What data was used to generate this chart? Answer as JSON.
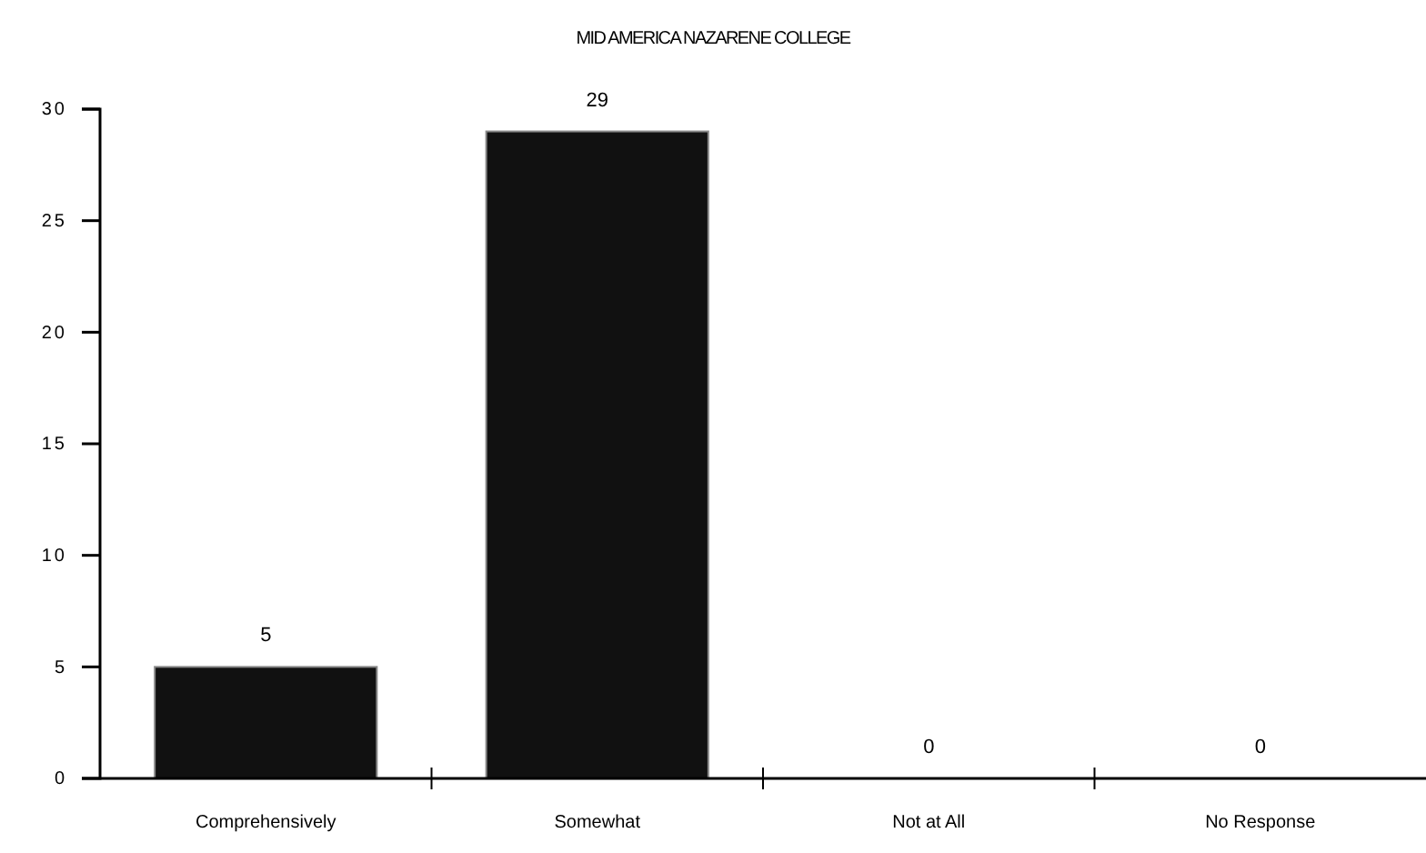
{
  "chart_data": {
    "type": "bar",
    "title": "MID AMERICA NAZARENE COLLEGE",
    "categories": [
      "Comprehensively",
      "Somewhat",
      "Not at All",
      "No Response"
    ],
    "values": [
      5,
      29,
      0,
      0
    ],
    "color": "#111111",
    "ylim": [
      0,
      30
    ],
    "yticks": [
      0,
      5,
      10,
      15,
      20,
      25,
      30
    ],
    "grid": false,
    "data_labels": true
  }
}
